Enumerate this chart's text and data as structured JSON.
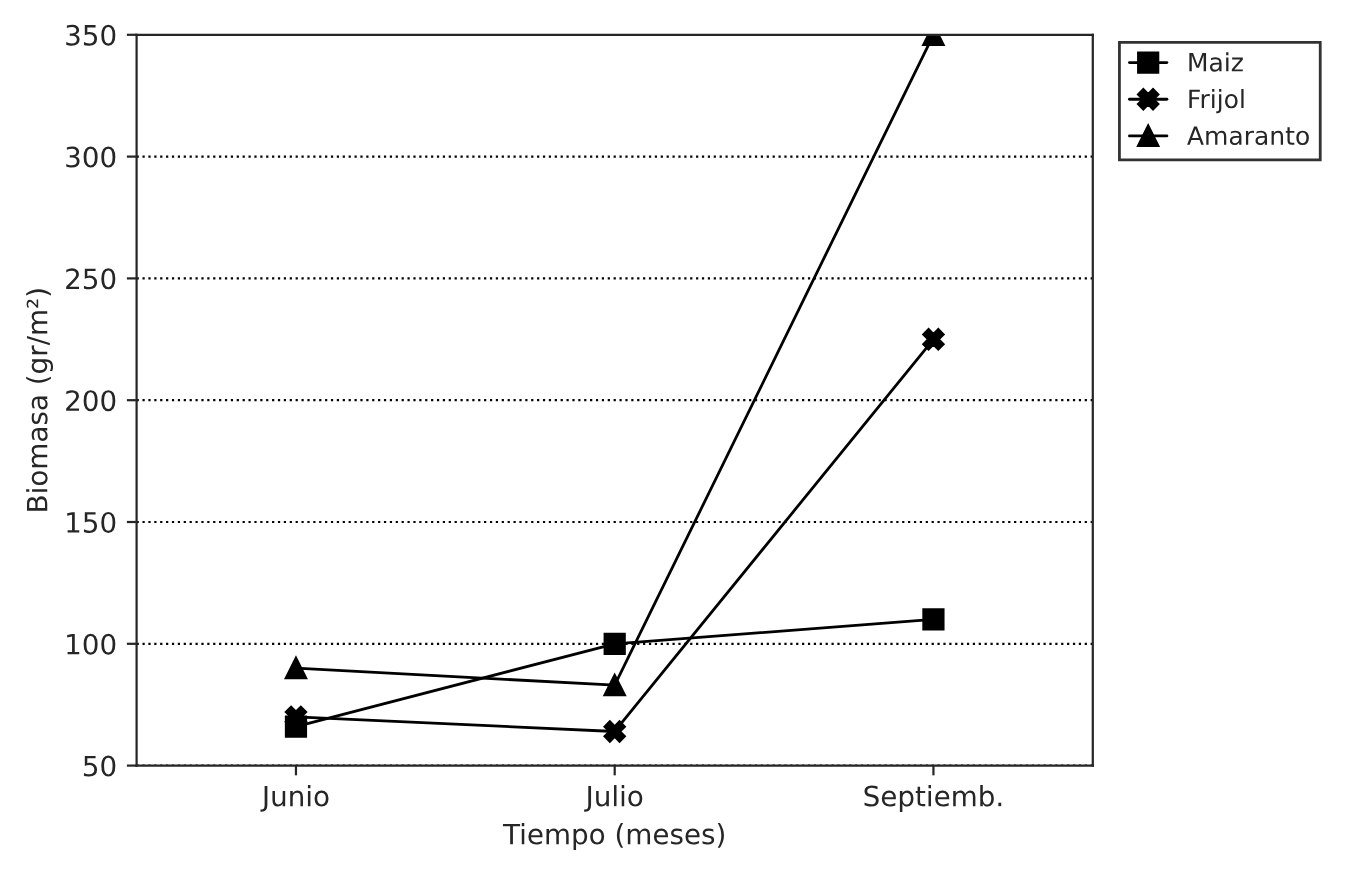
{
  "chart_data": {
    "type": "line",
    "xlabel": "Tiempo (meses)",
    "ylabel": "Biomasa (gr/m²)",
    "categories": [
      "Junio",
      "Julio",
      "Septiemb."
    ],
    "series": [
      {
        "name": "Maiz",
        "color": "#000000",
        "values": [
          66,
          100,
          110
        ],
        "marker": "square"
      },
      {
        "name": "Frijol",
        "color": "#000000",
        "values": [
          70,
          64,
          225
        ],
        "marker": "cross"
      },
      {
        "name": "Amaranto",
        "color": "#000000",
        "values": [
          90,
          83,
          350
        ],
        "marker": "triangle"
      }
    ],
    "ylim": [
      50,
      350
    ],
    "yticks": [
      50,
      100,
      150,
      200,
      250,
      300,
      350
    ],
    "grid": "y",
    "legend": "top right",
    "line_style": "solid"
  }
}
